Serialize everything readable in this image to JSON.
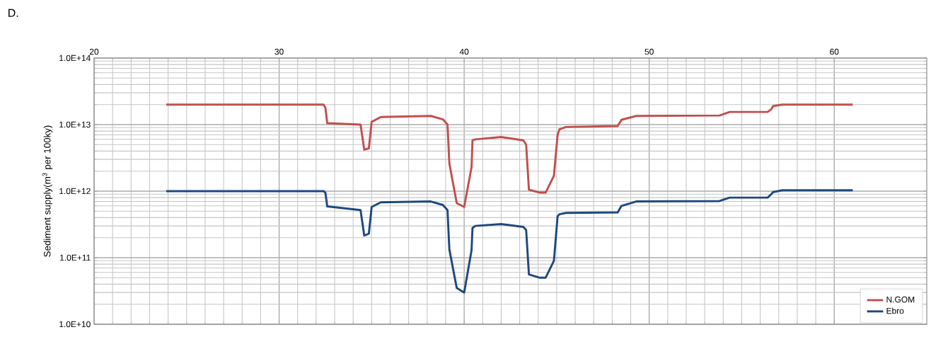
{
  "chart_data": {
    "type": "line",
    "ylabel": "Sediment supply(m$^{3}$ per 100ky)",
    "annotations": [
      "D."
    ],
    "xlim": [
      20,
      65
    ],
    "xticks": [
      20,
      30,
      40,
      50,
      60
    ],
    "ylim": [
      10000000000.0,
      100000000000000.0
    ],
    "yticks": [
      {
        "value": 10000000000.0,
        "label": "1.0E+10"
      },
      {
        "value": 100000000000.0,
        "label": "1.0E+11"
      },
      {
        "value": 1000000000000.0,
        "label": "1.0E+12"
      },
      {
        "value": 10000000000000.0,
        "label": "1.0E+13"
      },
      {
        "value": 100000000000000.0,
        "label": "1.0E+14"
      }
    ],
    "log": "y",
    "grid": true,
    "legend": "bottom right",
    "x": [
      23.9,
      32.4,
      32.5,
      32.6,
      34.4,
      34.6,
      34.85,
      35.0,
      35.5,
      38.2,
      38.85,
      39.1,
      39.2,
      39.6,
      40.0,
      40.4,
      40.45,
      40.6,
      42.0,
      43.2,
      43.35,
      43.5,
      44.1,
      44.4,
      44.85,
      45.05,
      45.15,
      45.5,
      48.3,
      48.5,
      49.3,
      53.8,
      54.35,
      56.4,
      56.6,
      56.7,
      57.2,
      61.0
    ],
    "series": [
      {
        "name": "N.GOM",
        "color": "#c0504d",
        "values": [
          20000000000000.0,
          20000000000000.0,
          18000000000000.0,
          10500000000000.0,
          10000000000000.0,
          4200000000000.0,
          4400000000000.0,
          11000000000000.0,
          13000000000000.0,
          13500000000000.0,
          12000000000000.0,
          10000000000000.0,
          2600000000000.0,
          660000000000.0,
          580000000000.0,
          2300000000000.0,
          5800000000000.0,
          6000000000000.0,
          6500000000000.0,
          5800000000000.0,
          5000000000000.0,
          1050000000000.0,
          950000000000.0,
          950000000000.0,
          1700000000000.0,
          7000000000000.0,
          8500000000000.0,
          9200000000000.0,
          9500000000000.0,
          11800000000000.0,
          13500000000000.0,
          13700000000000.0,
          15500000000000.0,
          15500000000000.0,
          17000000000000.0,
          19000000000000.0,
          20000000000000.0,
          20000000000000.0
        ]
      },
      {
        "name": "Ebro",
        "color": "#1f497d",
        "values": [
          1000000000000.0,
          1000000000000.0,
          950000000000.0,
          590000000000.0,
          520000000000.0,
          215000000000.0,
          230000000000.0,
          580000000000.0,
          680000000000.0,
          700000000000.0,
          620000000000.0,
          520000000000.0,
          133000000000.0,
          35000000000.0,
          30000000000.0,
          130000000000.0,
          280000000000.0,
          300000000000.0,
          320000000000.0,
          290000000000.0,
          260000000000.0,
          56000000000.0,
          50000000000.0,
          50000000000.0,
          90000000000.0,
          420000000000.0,
          450000000000.0,
          470000000000.0,
          480000000000.0,
          600000000000.0,
          700000000000.0,
          710000000000.0,
          800000000000.0,
          800000000000.0,
          900000000000.0,
          970000000000.0,
          1030000000000.0,
          1030000000000.0
        ]
      }
    ]
  }
}
